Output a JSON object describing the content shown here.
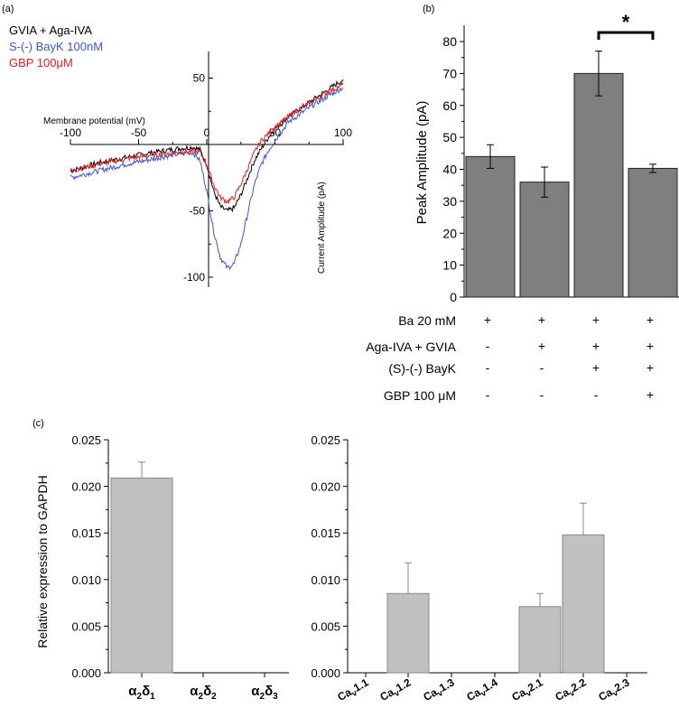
{
  "chart_data": [
    {
      "panel": "(a)",
      "type": "line",
      "xlabel": "Membrane potential (mV)",
      "ylabel": "Current Amplitude (pA)",
      "x_ticks": [
        "-100",
        "-50",
        "0",
        "50",
        "100"
      ],
      "y_ticks": [
        "50",
        "-50",
        "-100"
      ],
      "xlim": [
        -105,
        105
      ],
      "ylim": [
        -110,
        70
      ],
      "series": [
        {
          "name": "GVIA + Aga-IVA",
          "color": "#000000",
          "x": [
            -100,
            -80,
            -60,
            -40,
            -20,
            -10,
            -5,
            0,
            5,
            10,
            15,
            20,
            25,
            30,
            35,
            40,
            45,
            50,
            55,
            60,
            70,
            80,
            90,
            100
          ],
          "y": [
            -20,
            -14,
            -10,
            -6,
            -3,
            -2,
            -4,
            -15,
            -35,
            -47,
            -50,
            -48,
            -38,
            -25,
            -12,
            -3,
            5,
            12,
            16,
            21,
            28,
            35,
            42,
            49
          ]
        },
        {
          "name": "S-(-) BayK 100nM",
          "color": "#3a56d4",
          "x": [
            -100,
            -80,
            -60,
            -40,
            -20,
            -10,
            -5,
            0,
            5,
            10,
            15,
            20,
            25,
            30,
            35,
            40,
            45,
            50,
            55,
            60,
            70,
            80,
            90,
            100
          ],
          "y": [
            -25,
            -20,
            -15,
            -11,
            -7,
            -6,
            -12,
            -35,
            -65,
            -85,
            -93,
            -90,
            -75,
            -52,
            -30,
            -15,
            -5,
            3,
            10,
            17,
            24,
            31,
            37,
            43
          ]
        },
        {
          "name": "GBP 100μM",
          "color": "#e02020",
          "x": [
            -100,
            -80,
            -60,
            -40,
            -20,
            -10,
            -5,
            0,
            5,
            10,
            15,
            20,
            25,
            30,
            35,
            40,
            45,
            50,
            55,
            60,
            70,
            80,
            90,
            100
          ],
          "y": [
            -20,
            -15,
            -11,
            -8,
            -6,
            -5,
            -6,
            -15,
            -30,
            -40,
            -43,
            -40,
            -30,
            -18,
            -6,
            3,
            8,
            13,
            17,
            21,
            28,
            34,
            40,
            45
          ]
        }
      ],
      "grid": false,
      "legend": "top-left"
    },
    {
      "panel": "(b)",
      "type": "bar",
      "ylabel": "Peak Amplitude (pA)",
      "ylim": [
        0,
        85
      ],
      "y_ticks": [
        "0",
        "10",
        "20",
        "30",
        "40",
        "50",
        "60",
        "70",
        "80"
      ],
      "values": [
        44,
        36,
        70,
        40.3
      ],
      "errors": [
        3.7,
        4.7,
        7,
        1.3
      ],
      "bar_color": "#7f7f7f",
      "significance": {
        "between": [
          2,
          3
        ],
        "label": "*"
      },
      "conditions": [
        {
          "label": "Ba 20 mM",
          "marks": [
            "+",
            "+",
            "+",
            "+"
          ]
        },
        {
          "label": "Aga-IVA + GVIA",
          "marks": [
            "-",
            "+",
            "+",
            "+"
          ]
        },
        {
          "label": "(S)-(-) BayK",
          "marks": [
            "-",
            "-",
            "+",
            "+"
          ]
        },
        {
          "label": "GBP 100 μM",
          "marks": [
            "-",
            "-",
            "-",
            "+"
          ]
        }
      ]
    },
    {
      "panel": "(c)",
      "type": "bar",
      "ylabel": "Relative expression to GAPDH",
      "ylim": [
        0,
        0.025
      ],
      "y_ticks": [
        "0.000",
        "0.005",
        "0.010",
        "0.015",
        "0.020",
        "0.025"
      ],
      "categories": [
        "α2δ1",
        "α2δ2",
        "α2δ3"
      ],
      "values": [
        0.0209,
        0,
        0
      ],
      "errors": [
        0.0017,
        0,
        0
      ],
      "bar_color": "#c0c0c0"
    },
    {
      "type": "bar",
      "ylim": [
        0,
        0.025
      ],
      "y_ticks": [
        "0.000",
        "0.005",
        "0.010",
        "0.015",
        "0.020",
        "0.025"
      ],
      "categories": [
        "Cav1.1",
        "Cav1.2",
        "Cav1.3",
        "Cav1.4",
        "Cav2.1",
        "Cav2.2",
        "Cav2.3"
      ],
      "values": [
        0,
        0.0085,
        0,
        0,
        0.0071,
        0.0148,
        0
      ],
      "errors": [
        0,
        0.0033,
        0,
        0,
        0.0014,
        0.0034,
        0
      ],
      "bar_color": "#c0c0c0"
    }
  ]
}
